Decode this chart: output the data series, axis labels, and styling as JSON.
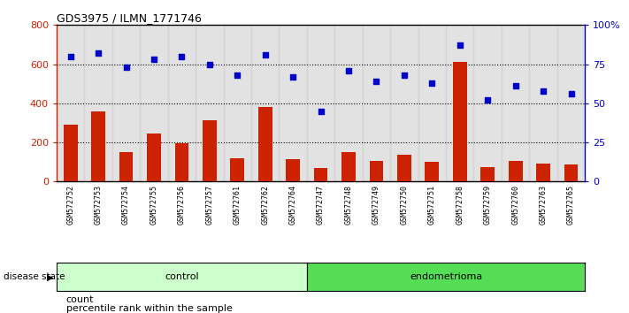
{
  "title": "GDS3975 / ILMN_1771746",
  "samples": [
    "GSM572752",
    "GSM572753",
    "GSM572754",
    "GSM572755",
    "GSM572756",
    "GSM572757",
    "GSM572761",
    "GSM572762",
    "GSM572764",
    "GSM572747",
    "GSM572748",
    "GSM572749",
    "GSM572750",
    "GSM572751",
    "GSM572758",
    "GSM572759",
    "GSM572760",
    "GSM572763",
    "GSM572765"
  ],
  "counts": [
    290,
    360,
    150,
    245,
    195,
    315,
    120,
    380,
    115,
    70,
    150,
    105,
    135,
    103,
    610,
    72,
    105,
    90,
    88
  ],
  "percentiles": [
    80,
    82,
    73,
    78,
    80,
    75,
    68,
    81,
    67,
    45,
    71,
    64,
    68,
    63,
    87,
    52,
    61,
    58,
    56
  ],
  "groups": [
    "control",
    "control",
    "control",
    "control",
    "control",
    "control",
    "control",
    "control",
    "control",
    "endometrioma",
    "endometrioma",
    "endometrioma",
    "endometrioma",
    "endometrioma",
    "endometrioma",
    "endometrioma",
    "endometrioma",
    "endometrioma",
    "endometrioma"
  ],
  "bar_color": "#cc2200",
  "dot_color": "#0000cc",
  "ylim_left": [
    0,
    800
  ],
  "ylim_right": [
    0,
    100
  ],
  "yticks_left": [
    0,
    200,
    400,
    600,
    800
  ],
  "yticks_right": [
    0,
    25,
    50,
    75,
    100
  ],
  "ytick_labels_right": [
    "0",
    "25",
    "50",
    "75",
    "100%"
  ],
  "label_count": "count",
  "label_percentile": "percentile rank within the sample",
  "label_disease_state": "disease state",
  "label_control": "control",
  "label_endometrioma": "endometrioma",
  "n_control": 9,
  "n_endometrioma": 10,
  "col_bg_color": "#d0d0d0",
  "control_color": "#ccffcc",
  "endometrioma_color": "#55dd55"
}
